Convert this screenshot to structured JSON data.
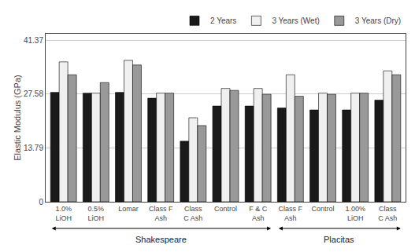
{
  "chart_data": {
    "type": "bar",
    "categories": [
      "1.0%\nLiOH",
      "0.5%\nLiOH",
      "Lomar",
      "Class F\nAsh",
      "Class\nC Ash",
      "Control",
      "F & C\nAsh",
      "Class F\nAsh",
      "Control",
      "1.00%\nLiOH",
      "Class\nC Ash"
    ],
    "series": [
      {
        "name": "2 Years",
        "color": "#1a1a1a",
        "values": [
          28.0,
          27.8,
          28.0,
          26.5,
          15.5,
          24.5,
          24.5,
          24.0,
          23.5,
          23.5,
          26.0
        ]
      },
      {
        "name": "3 Years (Wet)",
        "color": "#f0f0f0",
        "values": [
          35.8,
          27.8,
          36.2,
          27.8,
          21.5,
          29.0,
          29.0,
          32.5,
          27.8,
          27.8,
          33.5
        ]
      },
      {
        "name": "3 Years (Dry)",
        "color": "#999999",
        "values": [
          32.5,
          30.5,
          35.0,
          27.8,
          19.5,
          28.5,
          27.5,
          27.0,
          27.5,
          27.8,
          32.5
        ]
      }
    ],
    "ylabel": "Elastic Modulus (GPa)",
    "ylim": [
      0,
      43
    ],
    "yticks": [
      0,
      13.79,
      27.58,
      41.37
    ],
    "grid": true,
    "legend": "upper right",
    "annotations": [
      {
        "text": "Shakespeare",
        "from": 0,
        "to": 6
      },
      {
        "text": "Placitas",
        "from": 7,
        "to": 10
      }
    ]
  }
}
